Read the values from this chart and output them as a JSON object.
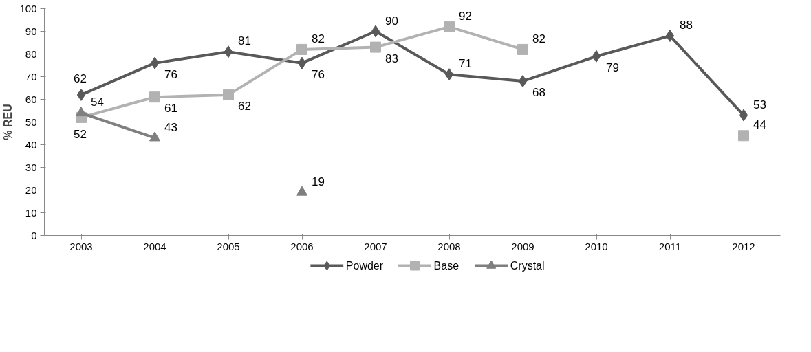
{
  "chart_data": {
    "type": "line",
    "ylabel": "% REU",
    "categories": [
      "2003",
      "2004",
      "2005",
      "2006",
      "2007",
      "2008",
      "2009",
      "2010",
      "2011",
      "2012"
    ],
    "series": [
      {
        "name": "Powder",
        "color": "#595959",
        "marker": "diamond",
        "values": [
          62,
          76,
          81,
          76,
          90,
          71,
          68,
          79,
          88,
          53
        ]
      },
      {
        "name": "Base",
        "color": "#b2b2b2",
        "marker": "square",
        "values": [
          52,
          61,
          62,
          82,
          83,
          92,
          82,
          null,
          null,
          44
        ]
      },
      {
        "name": "Crystal",
        "color": "#7f7f7f",
        "marker": "triangle",
        "values": [
          54,
          43,
          null,
          19,
          null,
          null,
          null,
          null,
          null,
          null
        ]
      }
    ],
    "ylim": [
      0,
      100
    ],
    "yticks": [
      0,
      10,
      20,
      30,
      40,
      50,
      60,
      70,
      80,
      90,
      100
    ],
    "grid": false,
    "legend": "bottom",
    "data_labels": true,
    "line_style": "solid"
  }
}
